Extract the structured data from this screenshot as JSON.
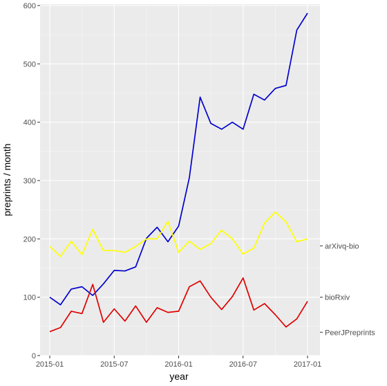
{
  "chart_data": {
    "type": "line",
    "xlabel": "year",
    "ylabel": "preprints / month",
    "xlim": [
      "2015-01",
      "2017-01"
    ],
    "ylim": [
      0,
      600
    ],
    "x_ticks": [
      "2015-01",
      "2015-07",
      "2016-01",
      "2016-07",
      "2017-01"
    ],
    "y_ticks": [
      "0",
      "100",
      "200",
      "300",
      "400",
      "500",
      "600"
    ],
    "grid": true,
    "background": "#ebebeb",
    "legend": "direct labels on right side",
    "x": [
      "2015-01",
      "2015-02",
      "2015-03",
      "2015-04",
      "2015-05",
      "2015-06",
      "2015-07",
      "2015-08",
      "2015-09",
      "2015-10",
      "2015-11",
      "2015-12",
      "2016-01",
      "2016-02",
      "2016-03",
      "2016-04",
      "2016-05",
      "2016-06",
      "2016-07",
      "2016-08",
      "2016-09",
      "2016-10",
      "2016-11",
      "2016-12",
      "2017-01"
    ],
    "series": [
      {
        "name": "bioRxiv",
        "color": "#0000cd",
        "label_value": 100,
        "values": [
          100,
          87,
          114,
          118,
          103,
          123,
          146,
          145,
          152,
          201,
          220,
          195,
          222,
          305,
          443,
          398,
          388,
          400,
          388,
          448,
          438,
          458,
          463,
          558,
          587
        ]
      },
      {
        "name": "arXivq-bio",
        "color": "#ffff00",
        "label_value": 188,
        "values": [
          187,
          170,
          196,
          173,
          216,
          180,
          180,
          177,
          187,
          200,
          200,
          230,
          177,
          196,
          182,
          192,
          215,
          200,
          174,
          184,
          227,
          246,
          229,
          195,
          200
        ]
      },
      {
        "name": "PeerJPreprints",
        "color": "#e00000",
        "label_value": 40,
        "values": [
          41,
          48,
          76,
          72,
          122,
          57,
          80,
          59,
          85,
          57,
          82,
          74,
          76,
          118,
          128,
          100,
          79,
          101,
          133,
          78,
          89,
          70,
          49,
          63,
          93
        ]
      }
    ]
  }
}
